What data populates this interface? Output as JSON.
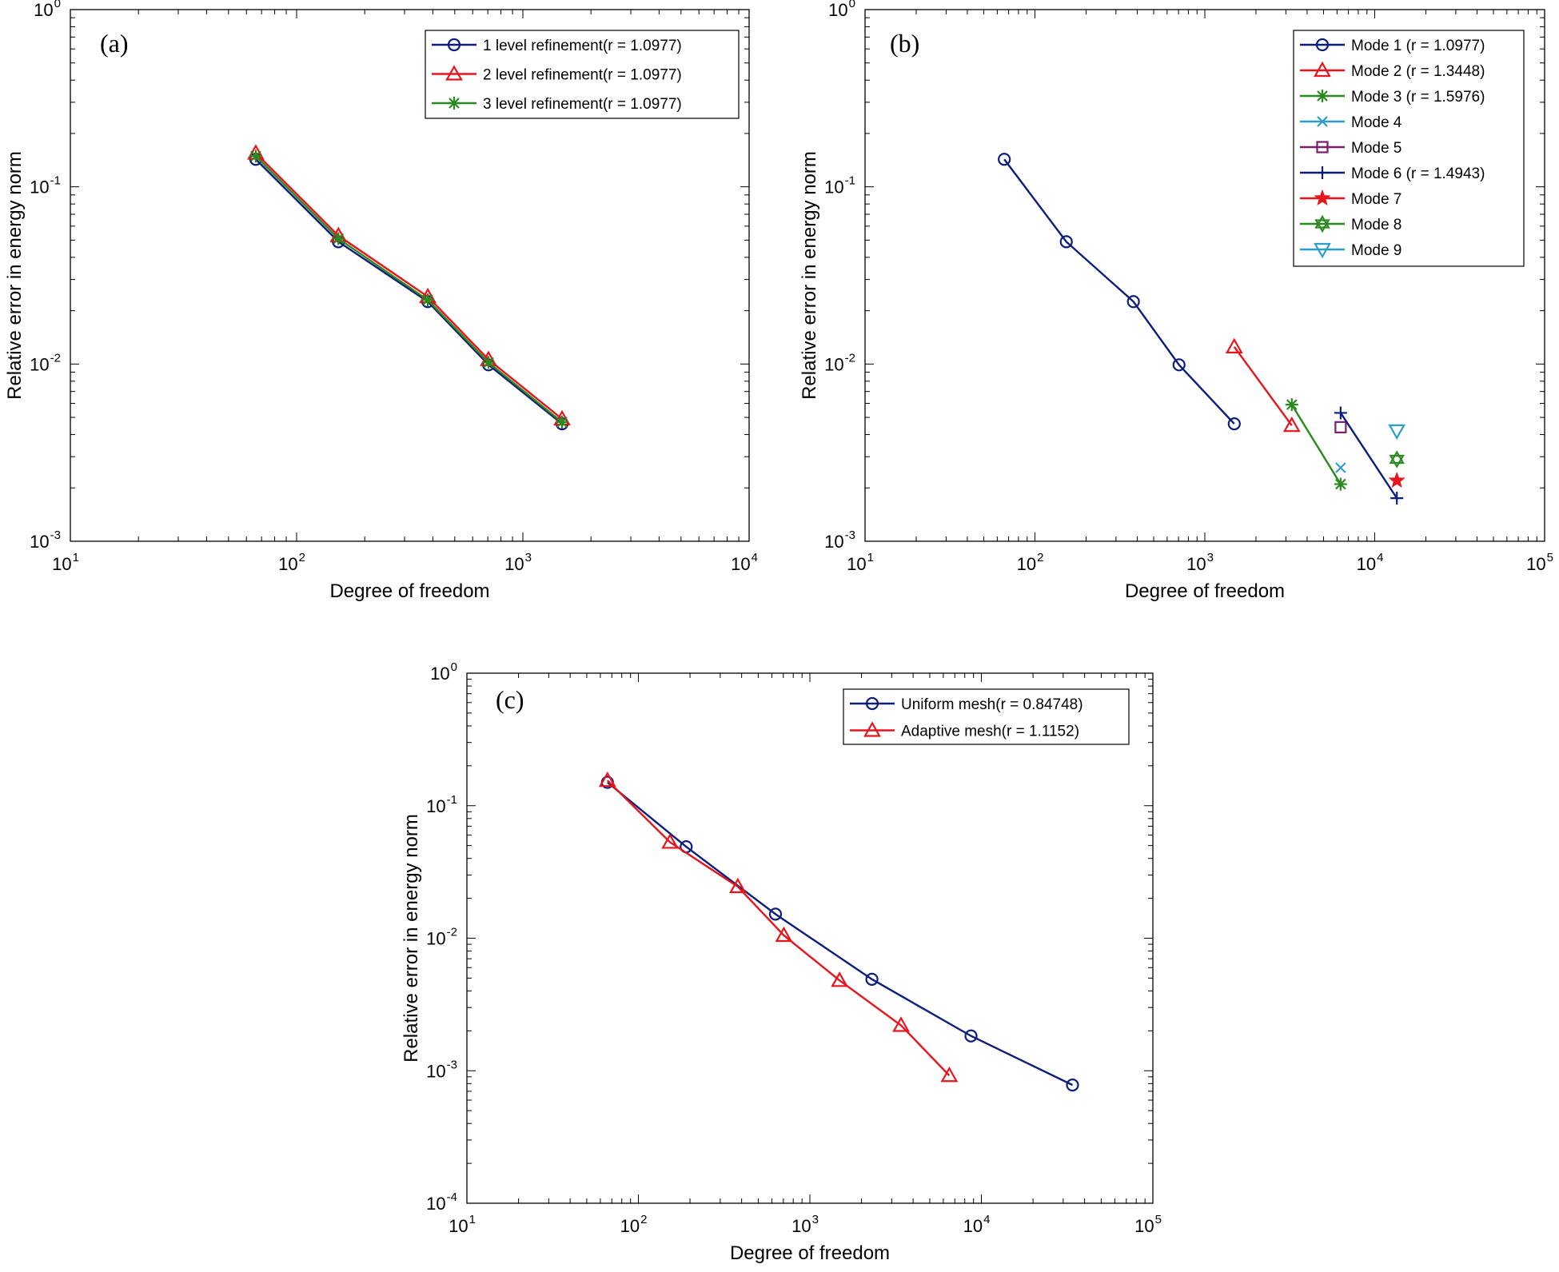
{
  "chart_data": [
    {
      "type": "line",
      "panel_label": "(a)",
      "xlabel": "Degree of freedom",
      "ylabel": "Relative error in energy norm",
      "xscale": "log",
      "yscale": "log",
      "xlim_exp": [
        1,
        4
      ],
      "ylim_exp": [
        -3,
        0
      ],
      "grid": false,
      "legend_position": "top-right",
      "series": [
        {
          "name": "1 level refinement(r = 1.0977)",
          "color": "#0c1d7a",
          "marker": "circle",
          "x": [
            66,
            153,
            380,
            705,
            1490
          ],
          "y": [
            0.143,
            0.049,
            0.0225,
            0.0099,
            0.0046
          ]
        },
        {
          "name": "2 level refinement(r = 1.0977)",
          "color": "#e8141c",
          "marker": "triangle",
          "x": [
            66,
            153,
            380,
            705,
            1490
          ],
          "y": [
            0.155,
            0.053,
            0.024,
            0.0106,
            0.0049
          ]
        },
        {
          "name": "3 level refinement(r = 1.0977)",
          "color": "#2a8a1f",
          "marker": "asterisk",
          "x": [
            66,
            153,
            380,
            705,
            1490
          ],
          "y": [
            0.149,
            0.051,
            0.023,
            0.0102,
            0.0047
          ]
        }
      ]
    },
    {
      "type": "line",
      "panel_label": "(b)",
      "xlabel": "Degree of freedom",
      "ylabel": "Relative error in energy norm",
      "xscale": "log",
      "yscale": "log",
      "xlim_exp": [
        1,
        5
      ],
      "ylim_exp": [
        -3,
        0
      ],
      "grid": false,
      "legend_position": "top-right",
      "series": [
        {
          "name": "Mode 1 (r = 1.0977)",
          "color": "#0c1d7a",
          "marker": "circle",
          "x": [
            66,
            153,
            380,
            705,
            1490
          ],
          "y": [
            0.143,
            0.049,
            0.0225,
            0.0099,
            0.0046
          ]
        },
        {
          "name": "Mode 2 (r = 1.3448)",
          "color": "#e8141c",
          "marker": "triangle",
          "x": [
            1490,
            3250
          ],
          "y": [
            0.0125,
            0.0045
          ]
        },
        {
          "name": "Mode 3 (r = 1.5976)",
          "color": "#2a8a1f",
          "marker": "asterisk",
          "x": [
            3250,
            6300
          ],
          "y": [
            0.0059,
            0.0021
          ]
        },
        {
          "name": "Mode 4",
          "color": "#2b9fc8",
          "marker": "x",
          "x": [
            6300
          ],
          "y": [
            0.0026
          ]
        },
        {
          "name": "Mode 5",
          "color": "#7b1f6a",
          "marker": "square",
          "x": [
            6300
          ],
          "y": [
            0.0044
          ]
        },
        {
          "name": "Mode 6 (r = 1.4943)",
          "color": "#0c1d7a",
          "marker": "plus",
          "x": [
            6300,
            13500
          ],
          "y": [
            0.0053,
            0.00175
          ]
        },
        {
          "name": "Mode 7",
          "color": "#e8141c",
          "marker": "star",
          "x": [
            13500
          ],
          "y": [
            0.0022
          ]
        },
        {
          "name": "Mode 8",
          "color": "#2a8a1f",
          "marker": "hexagram",
          "x": [
            13500
          ],
          "y": [
            0.0029
          ]
        },
        {
          "name": "Mode 9",
          "color": "#2b9fc8",
          "marker": "triangle-down",
          "x": [
            13500
          ],
          "y": [
            0.0042
          ]
        }
      ]
    },
    {
      "type": "line",
      "panel_label": "(c)",
      "xlabel": "Degree of freedom",
      "ylabel": "Relative error in energy norm",
      "xscale": "log",
      "yscale": "log",
      "xlim_exp": [
        1,
        5
      ],
      "ylim_exp": [
        -4,
        0
      ],
      "grid": false,
      "legend_position": "top-right",
      "series": [
        {
          "name": "Uniform mesh(r = 0.84748)",
          "color": "#0c1d7a",
          "marker": "circle",
          "x": [
            66,
            190,
            630,
            2300,
            8700,
            34000
          ],
          "y": [
            0.15,
            0.049,
            0.0152,
            0.0049,
            0.00183,
            0.00078
          ]
        },
        {
          "name": "Adaptive mesh(r = 1.1152)",
          "color": "#e8141c",
          "marker": "triangle",
          "x": [
            66,
            153,
            380,
            705,
            1490,
            3400,
            6500
          ],
          "y": [
            0.155,
            0.053,
            0.0245,
            0.0105,
            0.0048,
            0.0022,
            0.00092
          ]
        }
      ]
    }
  ]
}
